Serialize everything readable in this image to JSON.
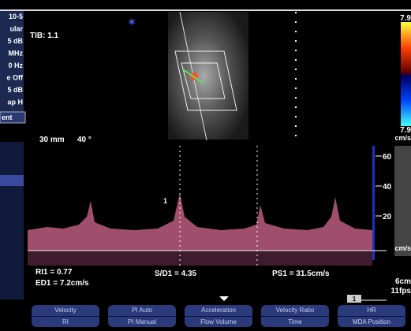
{
  "left_panel": {
    "items": [
      "10-5",
      "ular",
      "5 dB",
      "MHz",
      "0 Hz",
      "e Off",
      "5 dB",
      "ap H"
    ],
    "selected": "ent"
  },
  "image": {
    "tib": "TIB: 1.1",
    "depth": "30 mm",
    "angle": "40 °"
  },
  "color_bar": {
    "top": "7.9",
    "bottom": "7.9",
    "unit": "cm/s"
  },
  "spectrum": {
    "scale": [
      "60",
      "40",
      "20"
    ],
    "unit": "cm/s",
    "marker": "1"
  },
  "measurements": {
    "ri": "RI1 = 0.77",
    "ed": "ED1 = 7.2cm/s",
    "sd": "S/D1 = 4.35",
    "ps": "PS1 = 31.5cm/s"
  },
  "status": {
    "depth": "6cm",
    "fps": "11fps",
    "page": "1"
  },
  "buttons": [
    {
      "top": "Velocity",
      "bottom": "RI"
    },
    {
      "top": "PI Auto",
      "bottom": "PI Manual"
    },
    {
      "top": "Acceleration",
      "bottom": "Flow Volume"
    },
    {
      "top": "Velocity Ratio",
      "bottom": "Time"
    },
    {
      "top": "HR",
      "bottom": "MDA Position"
    }
  ]
}
